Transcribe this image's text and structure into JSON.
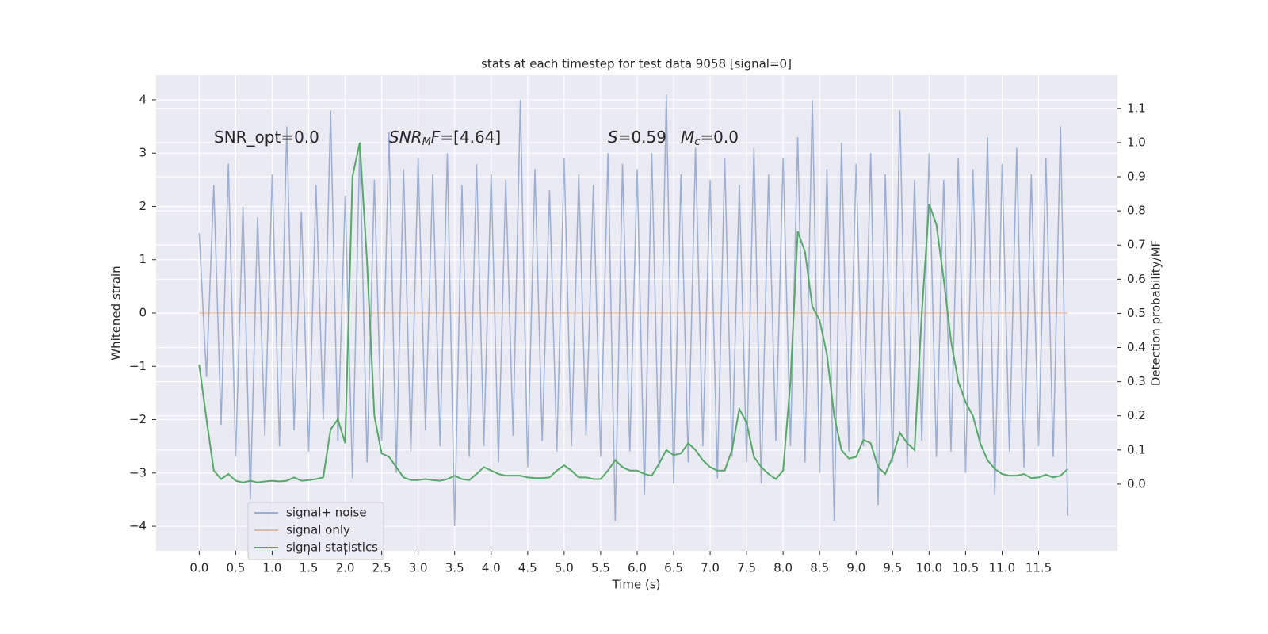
{
  "chart_data": {
    "type": "line",
    "title": "stats at each timestep for test data 9058 [signal=0]",
    "xlabel": "Time (s)",
    "ylabel": "Whitened strain",
    "y2label": "Detection probability/MF",
    "annotations": [
      [
        "SNR_opt=0.0"
      ],
      [
        "SNR",
        "M",
        "F",
        "=[4.64]"
      ],
      [
        "S",
        "=0.59"
      ],
      [
        "M",
        "c",
        "=0.0"
      ]
    ],
    "x": [
      0,
      0.1,
      0.2,
      0.3,
      0.4,
      0.5,
      0.6,
      0.7,
      0.8,
      0.9,
      1,
      1.1,
      1.2,
      1.3,
      1.4,
      1.5,
      1.6,
      1.7,
      1.8,
      1.9,
      2,
      2.1,
      2.2,
      2.3,
      2.4,
      2.5,
      2.6,
      2.7,
      2.8,
      2.9,
      3,
      3.1,
      3.2,
      3.3,
      3.4,
      3.5,
      3.6,
      3.7,
      3.8,
      3.9,
      4,
      4.1,
      4.2,
      4.3,
      4.4,
      4.5,
      4.6,
      4.7,
      4.8,
      4.9,
      5,
      5.1,
      5.2,
      5.3,
      5.4,
      5.5,
      5.6,
      5.7,
      5.8,
      5.9,
      6,
      6.1,
      6.2,
      6.3,
      6.4,
      6.5,
      6.6,
      6.7,
      6.8,
      6.9,
      7,
      7.1,
      7.2,
      7.3,
      7.4,
      7.5,
      7.6,
      7.7,
      7.8,
      7.9,
      8,
      8.1,
      8.2,
      8.3,
      8.4,
      8.5,
      8.6,
      8.7,
      8.8,
      8.9,
      9,
      9.1,
      9.2,
      9.3,
      9.4,
      9.5,
      9.6,
      9.7,
      9.8,
      9.9,
      10,
      10.1,
      10.2,
      10.3,
      10.4,
      10.5,
      10.6,
      10.7,
      10.8,
      10.9,
      11,
      11.1,
      11.2,
      11.3,
      11.4,
      11.5,
      11.6,
      11.7,
      11.8,
      11.9
    ],
    "series": [
      {
        "name": "signal+ noise",
        "color": "#4c72b0",
        "alpha": 0.5,
        "values": [
          1.5,
          -1.2,
          2.4,
          -2.1,
          2.8,
          -2.7,
          2.0,
          -3.5,
          1.8,
          -2.3,
          2.6,
          -2.5,
          3.5,
          -2.2,
          1.9,
          -2.6,
          2.4,
          -2.0,
          3.8,
          -2.4,
          2.2,
          -3.1,
          3.2,
          -2.8,
          2.5,
          -2.4,
          3.4,
          -3.0,
          2.7,
          -2.6,
          2.9,
          -2.2,
          2.6,
          -2.5,
          3.0,
          -4.0,
          2.4,
          -2.7,
          2.8,
          -2.5,
          2.6,
          -2.8,
          2.5,
          -2.3,
          4.0,
          -2.9,
          2.7,
          -2.4,
          2.3,
          -2.6,
          2.9,
          -2.5,
          2.6,
          -2.3,
          2.4,
          -2.7,
          3.0,
          -3.9,
          2.8,
          -2.6,
          2.7,
          -3.4,
          3.0,
          -2.9,
          4.1,
          -3.2,
          2.6,
          -2.8,
          3.1,
          -2.5,
          2.5,
          -3.1,
          2.9,
          -2.7,
          2.4,
          -2.8,
          3.1,
          -3.2,
          2.6,
          -2.4,
          2.9,
          -2.5,
          3.3,
          -2.8,
          4.0,
          -3.0,
          2.7,
          -3.9,
          3.2,
          -2.6,
          2.8,
          -2.5,
          3.0,
          -3.6,
          2.6,
          -2.8,
          3.8,
          -2.9,
          2.5,
          -2.4,
          3.0,
          -2.7,
          2.5,
          -2.6,
          2.9,
          -3.0,
          2.7,
          -2.5,
          3.3,
          -3.4,
          2.8,
          -2.6,
          3.1,
          -2.9,
          2.6,
          -2.5,
          2.9,
          -2.7,
          3.5,
          -3.8
        ]
      },
      {
        "name": "signal only",
        "color": "#dd8452",
        "alpha": 0.5,
        "values": [
          0,
          0,
          0,
          0,
          0,
          0,
          0,
          0,
          0,
          0,
          0,
          0,
          0,
          0,
          0,
          0,
          0,
          0,
          0,
          0,
          0,
          0,
          0,
          0,
          0,
          0,
          0,
          0,
          0,
          0,
          0,
          0,
          0,
          0,
          0,
          0,
          0,
          0,
          0,
          0,
          0,
          0,
          0,
          0,
          0,
          0,
          0,
          0,
          0,
          0,
          0,
          0,
          0,
          0,
          0,
          0,
          0,
          0,
          0,
          0,
          0,
          0,
          0,
          0,
          0,
          0,
          0,
          0,
          0,
          0,
          0,
          0,
          0,
          0,
          0,
          0,
          0,
          0,
          0,
          0,
          0,
          0,
          0,
          0,
          0,
          0,
          0,
          0,
          0,
          0,
          0,
          0,
          0,
          0,
          0,
          0,
          0,
          0,
          0,
          0,
          0,
          0,
          0,
          0,
          0,
          0,
          0,
          0,
          0,
          0,
          0,
          0,
          0,
          0,
          0,
          0,
          0,
          0,
          0,
          0
        ]
      },
      {
        "name": "signal statistics",
        "color": "#55a868",
        "alpha": 1,
        "axis": "y2",
        "values": [
          0.35,
          0.19,
          0.04,
          0.015,
          0.03,
          0.01,
          0.005,
          0.01,
          0.005,
          0.008,
          0.01,
          0.008,
          0.01,
          0.02,
          0.01,
          0.012,
          0.015,
          0.02,
          0.16,
          0.19,
          0.12,
          0.9,
          1.0,
          0.65,
          0.2,
          0.09,
          0.08,
          0.05,
          0.02,
          0.012,
          0.012,
          0.015,
          0.012,
          0.01,
          0.015,
          0.025,
          0.015,
          0.012,
          0.03,
          0.05,
          0.04,
          0.03,
          0.025,
          0.025,
          0.025,
          0.02,
          0.018,
          0.018,
          0.02,
          0.04,
          0.055,
          0.04,
          0.02,
          0.02,
          0.015,
          0.015,
          0.04,
          0.07,
          0.05,
          0.04,
          0.04,
          0.03,
          0.025,
          0.06,
          0.1,
          0.085,
          0.09,
          0.12,
          0.1,
          0.07,
          0.05,
          0.04,
          0.04,
          0.1,
          0.22,
          0.18,
          0.08,
          0.05,
          0.03,
          0.015,
          0.04,
          0.3,
          0.74,
          0.68,
          0.52,
          0.48,
          0.38,
          0.2,
          0.1,
          0.075,
          0.08,
          0.13,
          0.12,
          0.05,
          0.03,
          0.08,
          0.15,
          0.12,
          0.1,
          0.5,
          0.82,
          0.76,
          0.6,
          0.42,
          0.3,
          0.24,
          0.2,
          0.12,
          0.07,
          0.045,
          0.03,
          0.025,
          0.025,
          0.03,
          0.018,
          0.02,
          0.028,
          0.02,
          0.025,
          0.045
        ]
      }
    ],
    "xlim": [
      -0.59,
      12.58
    ],
    "ylim": [
      -4.46,
      4.46
    ],
    "y2lim": [
      -0.195,
      1.197
    ],
    "xticks": [
      {
        "value": 0,
        "label": "0.0"
      },
      {
        "value": 0.5,
        "label": "0.5"
      },
      {
        "value": 1,
        "label": "1.0"
      },
      {
        "value": 1.5,
        "label": "1.5"
      },
      {
        "value": 2,
        "label": "2.0"
      },
      {
        "value": 2.5,
        "label": "2.5"
      },
      {
        "value": 3,
        "label": "3.0"
      },
      {
        "value": 3.5,
        "label": "3.5"
      },
      {
        "value": 4,
        "label": "4.0"
      },
      {
        "value": 4.5,
        "label": "4.5"
      },
      {
        "value": 5,
        "label": "5.0"
      },
      {
        "value": 5.5,
        "label": "5.5"
      },
      {
        "value": 6,
        "label": "6.0"
      },
      {
        "value": 6.5,
        "label": "6.5"
      },
      {
        "value": 7,
        "label": "7.0"
      },
      {
        "value": 7.5,
        "label": "7.5"
      },
      {
        "value": 8,
        "label": "8.0"
      },
      {
        "value": 8.5,
        "label": "8.5"
      },
      {
        "value": 9,
        "label": "9.0"
      },
      {
        "value": 9.5,
        "label": "9.5"
      },
      {
        "value": 10,
        "label": "10.0"
      },
      {
        "value": 10.5,
        "label": "10.5"
      },
      {
        "value": 11,
        "label": "11.0"
      },
      {
        "value": 11.5,
        "label": "11.5"
      }
    ],
    "yticks": [
      {
        "value": -4,
        "label": "−4"
      },
      {
        "value": -3,
        "label": "−3"
      },
      {
        "value": -2,
        "label": "−2"
      },
      {
        "value": -1,
        "label": "−1"
      },
      0,
      1,
      2,
      3,
      4
    ],
    "y2ticks": [
      {
        "value": 0,
        "label": "0.0"
      },
      {
        "value": 0.1,
        "label": "0.1"
      },
      {
        "value": 0.2,
        "label": "0.2"
      },
      {
        "value": 0.3,
        "label": "0.3"
      },
      {
        "value": 0.4,
        "label": "0.4"
      },
      {
        "value": 0.5,
        "label": "0.5"
      },
      {
        "value": 0.6,
        "label": "0.6"
      },
      {
        "value": 0.7,
        "label": "0.7"
      },
      {
        "value": 0.8,
        "label": "0.8"
      },
      {
        "value": 0.9,
        "label": "0.9"
      },
      {
        "value": 1,
        "label": "1.0"
      },
      {
        "value": 1.1,
        "label": "1.1"
      }
    ],
    "grid": true,
    "legend": "lower left"
  }
}
